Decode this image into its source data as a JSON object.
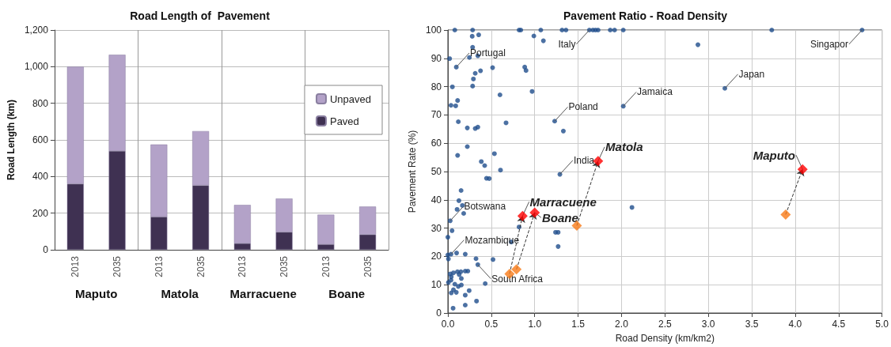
{
  "chart_data": [
    {
      "type": "bar",
      "title": "Road Length of  Pavement",
      "ylabel": "Road Length (km)",
      "stacked": true,
      "grid": "y",
      "legend": "top right",
      "categories": [
        "2013",
        "2035",
        "2013",
        "2035",
        "2013",
        "2035",
        "2013",
        "2035"
      ],
      "annotations": [
        "Maputo",
        "Matola",
        "Marracuene",
        "Boane"
      ],
      "ylim": [
        0,
        1200
      ],
      "yticks": [
        0,
        200,
        400,
        600,
        800,
        {
          "value": 1000,
          "label": "1,000"
        },
        {
          "value": 1200,
          "label": "1,200"
        }
      ],
      "series": [
        {
          "name": "Paved",
          "color": "#3f3152",
          "values": [
            360,
            540,
            180,
            352,
            35,
            97,
            30,
            83
          ]
        },
        {
          "name": "Unpaved",
          "color": "#b3a2c8",
          "values": [
            640,
            525,
            395,
            296,
            210,
            183,
            162,
            153
          ]
        }
      ]
    },
    {
      "type": "scatter",
      "title": "Pavement Ratio - Road Density",
      "xlabel": "Road Density (km/km2)",
      "ylabel": "Pavement Rate (%)",
      "grid": true,
      "xlim": [
        0,
        5
      ],
      "xticks": [
        {
          "value": 0,
          "label": "0.0"
        },
        0.5,
        {
          "value": 1,
          "label": "1.0"
        },
        1.5,
        {
          "value": 2,
          "label": "2.0"
        },
        2.5,
        {
          "value": 3,
          "label": "3.0"
        },
        3.5,
        {
          "value": 4,
          "label": "4.0"
        },
        4.5,
        {
          "value": 5,
          "label": "5.0"
        }
      ],
      "ylim": [
        0,
        100
      ],
      "yticks": [
        0,
        10,
        20,
        30,
        40,
        50,
        60,
        70,
        80,
        90,
        100
      ],
      "series": [
        {
          "color": "#1f4e8c",
          "marker": "circle",
          "x": [
            0.08,
            0.285,
            0.82,
            0.84,
            1.07,
            1.315,
            1.36,
            1.63,
            1.67,
            1.7,
            1.73,
            1.87,
            1.92,
            2.02,
            3.73,
            4.77,
            0.28,
            0.355,
            0.99,
            1.1,
            0.285,
            0.02,
            0.097,
            0.248,
            0.345,
            0.315,
            0.376,
            0.294,
            0.285,
            0.515,
            0.885,
            0.9,
            0.052,
            0.97,
            0.6,
            0.036,
            0.09,
            0.112,
            0.12,
            0.224,
            0.315,
            0.345,
            0.67,
            0.224,
            0.112,
            0.536,
            0.385,
            0.424,
            0.606,
            0.445,
            0.476,
            0.152,
            0.127,
            0.167,
            0.106,
            0.182,
            0.027,
            0.048,
            0.0,
            0.82,
            0.73,
            1.24,
            1.27,
            1.27,
            0.0,
            0.036,
            0.006,
            0.1,
            0.2,
            0.324,
            0.52,
            0.345,
            0.027,
            0.064,
            0.11,
            0.15,
            0.2,
            0.23,
            0.039,
            0.13,
            0.155,
            0.006,
            0.036,
            0.08,
            0.12,
            0.155,
            0.064,
            0.097,
            0.039,
            0.2,
            0.245,
            0.43,
            0.33,
            0.2,
            0.06,
            2.88,
            3.19,
            2.02,
            1.23,
            1.33,
            1.29,
            2.12
          ],
          "values": [
            100,
            100,
            100,
            100,
            100,
            100,
            100,
            100,
            100,
            100,
            100,
            100,
            100,
            100,
            100,
            100,
            97.8,
            98.3,
            97.9,
            96.2,
            93.9,
            89.9,
            86.9,
            90.3,
            90.9,
            84.7,
            85.6,
            82.7,
            80.2,
            86.7,
            86.9,
            85.7,
            79.9,
            78.3,
            77.1,
            73.4,
            73.2,
            75.1,
            67.6,
            65.4,
            65.2,
            65.7,
            67.2,
            58.8,
            55.7,
            56.3,
            53.5,
            52.1,
            50.5,
            47.6,
            47.5,
            43.3,
            39.7,
            38.0,
            36.6,
            35.2,
            32.6,
            29.1,
            26.8,
            30.4,
            25.1,
            28.5,
            28.5,
            23.5,
            20.5,
            20.8,
            19.1,
            21.2,
            20.8,
            19.2,
            18.9,
            17.1,
            13.8,
            14.2,
            14.6,
            14.6,
            14.8,
            14.8,
            12.8,
            13.6,
            12.2,
            10.8,
            11.6,
            10.2,
            9.4,
            9.9,
            8.2,
            7.3,
            7.1,
            6.3,
            7.9,
            10.4,
            4.2,
            2.8,
            1.7,
            94.8,
            79.4,
            73.1,
            67.8,
            64.3,
            49.0,
            37.3
          ]
        },
        {
          "color": "#f97b16",
          "marker": "diamond",
          "x": [
            0.71,
            0.79,
            1.485,
            3.89
          ],
          "values": [
            13.8,
            15.4,
            30.9,
            34.8
          ]
        },
        {
          "color": "#ff0000",
          "marker": "diamond",
          "x": [
            0.86,
            1.0,
            1.73,
            4.085
          ],
          "values": [
            34.3,
            35.5,
            53.7,
            50.8
          ]
        }
      ],
      "annotations": [
        {
          "text": "Portugal",
          "x": 0.097,
          "y": 86.9
        },
        {
          "text": "Italy",
          "x": 1.63,
          "y": 100
        },
        {
          "text": "Singapor",
          "x": 4.77,
          "y": 100
        },
        {
          "text": "Japan",
          "x": 3.19,
          "y": 79.4
        },
        {
          "text": "Jamaica",
          "x": 2.02,
          "y": 73.1
        },
        {
          "text": "Poland",
          "x": 1.23,
          "y": 67.8
        },
        {
          "text": "India",
          "x": 1.29,
          "y": 49.0
        },
        {
          "text": "Botswana",
          "x": 0.027,
          "y": 32.6
        },
        {
          "text": "Mozambique",
          "x": 0.036,
          "y": 20.8
        },
        {
          "text": "South Africa",
          "x": 0.345,
          "y": 17.1
        },
        {
          "text": "Marracuene",
          "x": 0.86,
          "y": 34.3
        },
        {
          "text": "Boane",
          "x": 1.0,
          "y": 35.5
        },
        {
          "text": "Matola",
          "x": 1.73,
          "y": 53.7
        },
        {
          "text": "Maputo",
          "x": 4.085,
          "y": 50.8
        }
      ]
    }
  ]
}
